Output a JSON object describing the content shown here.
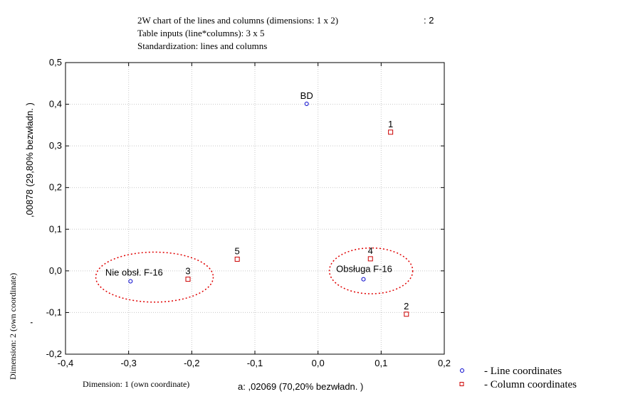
{
  "chart_data": {
    "type": "scatter",
    "title_lines": [
      "2W chart of the lines and columns (dimensions: 1 x 2)",
      "Table inputs (line*columns): 3 x 5",
      "Standardization: lines and columns"
    ],
    "title_fragment": ": 2",
    "xlabel_overlay": "Dimension: 1 (own coordinate)",
    "xlabel_fragment": "a: ,02069 (70,20% bezwładn. )",
    "ylabel_overlay": "Dimension: 2 (own coordinate)",
    "ylabel_fragment": ",00878 (29,80% bezwładn. )",
    "ylabel_stray": "'",
    "xlim": [
      -0.4,
      0.2
    ],
    "ylim": [
      -0.2,
      0.5
    ],
    "x_ticks": [
      "-0,4",
      "-0,3",
      "-0,2",
      "-0,1",
      "0,0",
      "0,1",
      "0,2"
    ],
    "y_ticks": [
      "-0,2",
      "-0,1",
      "0,0",
      "0,1",
      "0,2",
      "0,3",
      "0,4",
      "0,5"
    ],
    "x_tick_values": [
      -0.4,
      -0.3,
      -0.2,
      -0.1,
      0.0,
      0.1,
      0.2
    ],
    "y_tick_values": [
      -0.2,
      -0.1,
      0.0,
      0.1,
      0.2,
      0.3,
      0.4,
      0.5
    ],
    "grid": true,
    "legend_position": "bottom-right",
    "series": [
      {
        "name": "- Line coordinates",
        "marker": "circle",
        "color": "#0000cc",
        "points": [
          {
            "label": "BD",
            "x": -0.018,
            "y": 0.401
          },
          {
            "label": "Nie obsł. F-16",
            "x": -0.297,
            "y": -0.025
          },
          {
            "label": "Obsługa F-16",
            "x": 0.072,
            "y": -0.02
          }
        ]
      },
      {
        "name": "- Column coordinates",
        "marker": "square",
        "color": "#cc0000",
        "points": [
          {
            "label": "1",
            "x": 0.115,
            "y": 0.333
          },
          {
            "label": "2",
            "x": 0.14,
            "y": -0.104
          },
          {
            "label": "3",
            "x": -0.206,
            "y": -0.02
          },
          {
            "label": "4",
            "x": 0.083,
            "y": 0.029
          },
          {
            "label": "5",
            "x": -0.128,
            "y": 0.028
          }
        ]
      }
    ],
    "annotations": [
      {
        "type": "ellipse",
        "cx": -0.259,
        "cy": -0.015,
        "rx": 0.093,
        "ry": 0.06,
        "color": "#e00000"
      },
      {
        "type": "ellipse",
        "cx": 0.084,
        "cy": 0.0,
        "rx": 0.066,
        "ry": 0.055,
        "color": "#e00000"
      }
    ]
  }
}
